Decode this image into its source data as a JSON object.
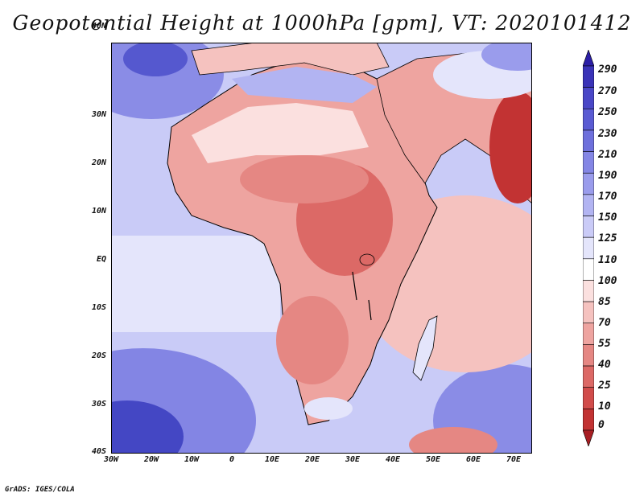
{
  "title": "Geopotential Height at 1000hPa [gpm], VT: 2020101412",
  "credit": "GrADS: IGES/COLA",
  "lat_labels": [
    "40N",
    "30N",
    "20N",
    "10N",
    "EQ",
    "10S",
    "20S",
    "30S",
    "40S"
  ],
  "lon_labels": [
    "30W",
    "20W",
    "10W",
    "0",
    "10E",
    "20E",
    "30E",
    "40E",
    "50E",
    "60E",
    "70E"
  ],
  "colorbar": {
    "levels": [
      "290",
      "270",
      "250",
      "230",
      "210",
      "190",
      "170",
      "150",
      "125",
      "110",
      "100",
      "85",
      "70",
      "55",
      "40",
      "25",
      "10",
      "0"
    ],
    "colors": [
      "#2b1ea6",
      "#3a33b8",
      "#4a47c7",
      "#5a5bd3",
      "#6e70dc",
      "#8486e5",
      "#9a9cec",
      "#b2b4f2",
      "#cacbf7",
      "#e4e5fb",
      "#ffffff",
      "#fbe0df",
      "#f5c2bf",
      "#eea4a0",
      "#e58783",
      "#dc6966",
      "#d14c4b",
      "#c23333",
      "#a81e23"
    ]
  }
}
